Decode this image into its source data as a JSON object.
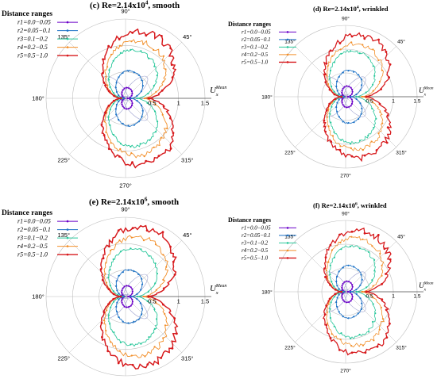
{
  "colors": {
    "r1": "#6a00c8",
    "r2": "#1d72c6",
    "r3": "#28c79a",
    "r4": "#f28f2a",
    "r5": "#d7191c",
    "lobe": "#9fa3d0",
    "grid": "#bdbdbd"
  },
  "chart_data": [
    {
      "type": "polar-line",
      "title": "(c) Re=2.14x10",
      "title_exp": "4",
      "title_suffix": ", smooth",
      "legend_title": "Distance ranges",
      "legend": [
        "r1=0.0−0.05",
        "r2=0.05−0.1",
        "r3=0.1−0.2",
        "r4=0.2−0.5",
        "r5=0.5−1.0"
      ],
      "angle_labels": [
        "0°",
        "45°",
        "90°",
        "135°",
        "180°",
        "225°",
        "270°",
        "315°"
      ],
      "radial_ticks": [
        "0.5",
        "1",
        "1.5"
      ],
      "radial_label": "U",
      "radial_label_sub": "x",
      "radial_label_sup": "Mean",
      "rlim": [
        0,
        1.5
      ],
      "series": [
        {
          "values": [
            0.04,
            0.2,
            0.08,
            0.2,
            0.04
          ]
        },
        {
          "values": [
            0.1,
            0.52,
            0.2,
            0.52,
            0.1
          ]
        },
        {
          "values": [
            0.22,
            0.9,
            0.36,
            0.9,
            0.22
          ]
        },
        {
          "values": [
            0.35,
            1.05,
            0.62,
            1.05,
            0.35
          ]
        },
        {
          "values": [
            0.45,
            1.22,
            0.58,
            1.22,
            0.45
          ]
        }
      ]
    },
    {
      "type": "polar-line",
      "title": "(d) Re=2.14x10",
      "title_exp": "4",
      "title_suffix": ", wrinkled",
      "legend_title": "Distance ranges",
      "legend": [
        "r1=0.0−0.05",
        "r2=0.05−0.1",
        "r3=0.1−0.2",
        "r4=0.2−0.5",
        "r5=0.5−1.0"
      ],
      "angle_labels": [
        "0°",
        "45°",
        "90°",
        "135°",
        "180°",
        "225°",
        "270°",
        "315°"
      ],
      "radial_ticks": [
        "0.5",
        "1",
        "1.5"
      ],
      "radial_label": "U",
      "radial_label_sub": "x",
      "radial_label_sup": "Mean",
      "rlim": [
        0,
        1.5
      ],
      "series": [
        {
          "values": [
            0.05,
            0.22,
            0.1,
            0.22,
            0.05
          ]
        },
        {
          "values": [
            0.1,
            0.55,
            0.22,
            0.55,
            0.1
          ]
        },
        {
          "values": [
            0.22,
            0.95,
            0.38,
            0.95,
            0.22
          ]
        },
        {
          "values": [
            0.35,
            1.08,
            0.62,
            1.08,
            0.35
          ]
        },
        {
          "values": [
            0.45,
            1.25,
            0.6,
            1.25,
            0.45
          ]
        }
      ]
    },
    {
      "type": "polar-line",
      "title": "(e) Re=2.14x10",
      "title_exp": "6",
      "title_suffix": ", smooth",
      "legend_title": "Distance ranges",
      "legend": [
        "r1=0.0−0.05",
        "r2=0.05−0.1",
        "r3=0.1−0.2",
        "r4=0.2−0.5",
        "r5=0.5−1.0"
      ],
      "angle_labels": [
        "0°",
        "45°",
        "90°",
        "135°",
        "180°",
        "225°",
        "270°",
        "315°"
      ],
      "radial_ticks": [
        "0.5",
        "1",
        "1.5"
      ],
      "radial_label": "U",
      "radial_label_sub": "x",
      "radial_label_sup": "Mean",
      "rlim": [
        0,
        1.5
      ],
      "series": [
        {
          "values": [
            0.05,
            0.2,
            0.1,
            0.2,
            0.05
          ]
        },
        {
          "values": [
            0.1,
            0.5,
            0.2,
            0.5,
            0.1
          ]
        },
        {
          "values": [
            0.22,
            0.9,
            0.35,
            0.9,
            0.22
          ]
        },
        {
          "values": [
            0.35,
            1.1,
            0.6,
            1.1,
            0.35
          ]
        },
        {
          "values": [
            0.45,
            1.28,
            0.58,
            1.28,
            0.45
          ]
        }
      ]
    },
    {
      "type": "polar-line",
      "title": "(f) Re=2.14x10",
      "title_exp": "6",
      "title_suffix": ", wrinkled",
      "legend_title": "Distance ranges",
      "legend": [
        "r1=0.0−0.05",
        "r2=0.05−0.1",
        "r3=0.1−0.2",
        "r4=0.2−0.5",
        "r5=0.5−1.0"
      ],
      "angle_labels": [
        "0°",
        "45°",
        "90°",
        "135°",
        "180°",
        "225°",
        "270°",
        "315°"
      ],
      "radial_ticks": [
        "0.5",
        "1",
        "1.5"
      ],
      "radial_label": "U",
      "radial_label_sub": "x",
      "radial_label_sup": "Mean",
      "rlim": [
        0,
        1.5
      ],
      "series": [
        {
          "values": [
            0.05,
            0.22,
            0.1,
            0.22,
            0.05
          ]
        },
        {
          "values": [
            0.1,
            0.55,
            0.22,
            0.55,
            0.1
          ]
        },
        {
          "values": [
            0.22,
            0.95,
            0.38,
            0.95,
            0.22
          ]
        },
        {
          "values": [
            0.35,
            1.1,
            0.62,
            1.1,
            0.35
          ]
        },
        {
          "values": [
            0.45,
            1.25,
            0.6,
            1.25,
            0.45
          ]
        }
      ]
    }
  ]
}
